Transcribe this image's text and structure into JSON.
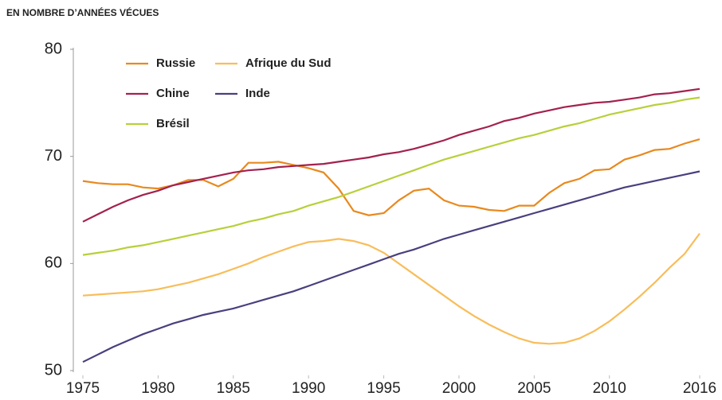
{
  "chart_data": {
    "type": "line",
    "subtitle": "EN NOMBRE D’ANNÉES VÉCUES",
    "x": [
      1975,
      1976,
      1977,
      1978,
      1979,
      1980,
      1981,
      1982,
      1983,
      1984,
      1985,
      1986,
      1987,
      1988,
      1989,
      1990,
      1991,
      1992,
      1993,
      1994,
      1995,
      1996,
      1997,
      1998,
      1999,
      2000,
      2001,
      2002,
      2003,
      2004,
      2005,
      2006,
      2007,
      2008,
      2009,
      2010,
      2011,
      2012,
      2013,
      2014,
      2015,
      2016
    ],
    "series": [
      {
        "name": "Russie",
        "color": "#e8891e",
        "values": [
          67.7,
          67.5,
          67.4,
          67.4,
          67.1,
          67.0,
          67.3,
          67.8,
          67.8,
          67.2,
          67.9,
          69.4,
          69.4,
          69.5,
          69.2,
          68.9,
          68.5,
          67.0,
          64.9,
          64.5,
          64.7,
          65.9,
          66.8,
          67.0,
          65.9,
          65.4,
          65.3,
          65.0,
          64.9,
          65.4,
          65.4,
          66.6,
          67.5,
          67.9,
          68.7,
          68.8,
          69.7,
          70.1,
          70.6,
          70.7,
          71.2,
          71.6
        ]
      },
      {
        "name": "Chine",
        "color": "#a3214f",
        "values": [
          63.9,
          64.6,
          65.3,
          65.9,
          66.4,
          66.8,
          67.3,
          67.6,
          67.9,
          68.2,
          68.5,
          68.7,
          68.8,
          69.0,
          69.1,
          69.2,
          69.3,
          69.5,
          69.7,
          69.9,
          70.2,
          70.4,
          70.7,
          71.1,
          71.5,
          72.0,
          72.4,
          72.8,
          73.3,
          73.6,
          74.0,
          74.3,
          74.6,
          74.8,
          75.0,
          75.1,
          75.3,
          75.5,
          75.8,
          75.9,
          76.1,
          76.3
        ]
      },
      {
        "name": "Brésil",
        "color": "#b9cf3a",
        "values": [
          60.8,
          61.0,
          61.2,
          61.5,
          61.7,
          62.0,
          62.3,
          62.6,
          62.9,
          63.2,
          63.5,
          63.9,
          64.2,
          64.6,
          64.9,
          65.4,
          65.8,
          66.2,
          66.7,
          67.2,
          67.7,
          68.2,
          68.7,
          69.2,
          69.7,
          70.1,
          70.5,
          70.9,
          71.3,
          71.7,
          72.0,
          72.4,
          72.8,
          73.1,
          73.5,
          73.9,
          74.2,
          74.5,
          74.8,
          75.0,
          75.3,
          75.5
        ]
      },
      {
        "name": "Afrique du Sud",
        "color": "#f8bd5a",
        "values": [
          57.0,
          57.1,
          57.2,
          57.3,
          57.4,
          57.6,
          57.9,
          58.2,
          58.6,
          59.0,
          59.5,
          60.0,
          60.6,
          61.1,
          61.6,
          62.0,
          62.1,
          62.3,
          62.1,
          61.7,
          61.0,
          60.0,
          59.0,
          58.0,
          57.0,
          56.0,
          55.1,
          54.3,
          53.6,
          53.0,
          52.6,
          52.5,
          52.6,
          53.0,
          53.7,
          54.6,
          55.7,
          56.9,
          58.2,
          59.6,
          60.9,
          62.8
        ]
      },
      {
        "name": "Inde",
        "color": "#4a3f7e",
        "values": [
          50.8,
          51.5,
          52.2,
          52.8,
          53.4,
          53.9,
          54.4,
          54.8,
          55.2,
          55.5,
          55.8,
          56.2,
          56.6,
          57.0,
          57.4,
          57.9,
          58.4,
          58.9,
          59.4,
          59.9,
          60.4,
          60.9,
          61.3,
          61.8,
          62.3,
          62.7,
          63.1,
          63.5,
          63.9,
          64.3,
          64.7,
          65.1,
          65.5,
          65.9,
          66.3,
          66.7,
          67.1,
          67.4,
          67.7,
          68.0,
          68.3,
          68.6
        ]
      }
    ],
    "xlim": [
      1975,
      2016
    ],
    "xticks": [
      1975,
      1980,
      1985,
      1990,
      1995,
      2000,
      2005,
      2010,
      2016
    ],
    "ylim": [
      50,
      80
    ],
    "yticks": [
      50,
      60,
      70,
      80
    ],
    "grid": false
  }
}
